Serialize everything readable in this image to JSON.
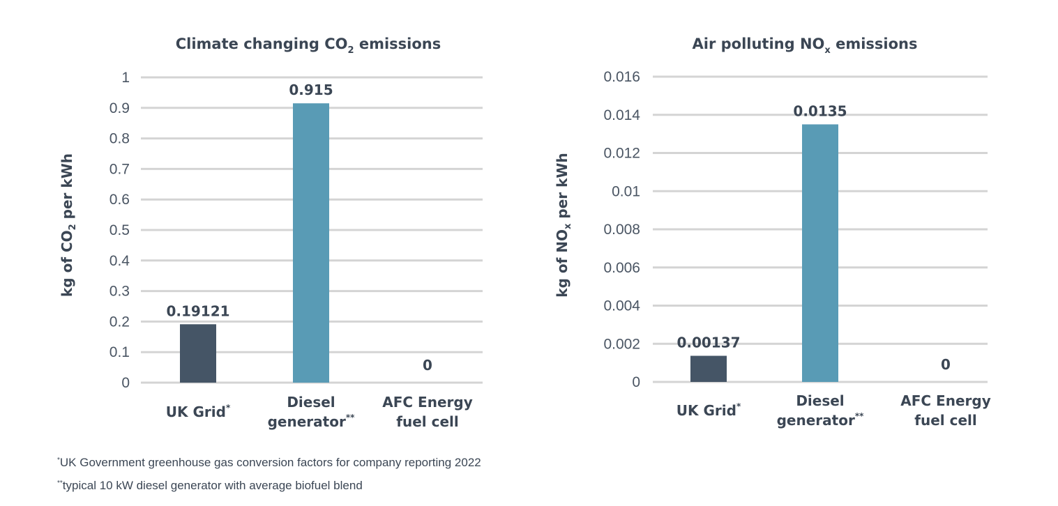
{
  "chart_data": [
    {
      "type": "bar",
      "title": {
        "pre": "Climate changing CO",
        "sub": "2",
        "post": " emissions"
      },
      "ylabel": {
        "pre": "kg of CO",
        "sub": "2",
        "post": " per kWh"
      },
      "categories": [
        {
          "lines": [
            "UK Grid"
          ],
          "mark": "*"
        },
        {
          "lines": [
            "Diesel",
            "generator"
          ],
          "mark": "**"
        },
        {
          "lines": [
            "AFC Energy",
            "fuel cell"
          ],
          "mark": ""
        }
      ],
      "values": [
        0.19121,
        0.915,
        0
      ],
      "value_labels": [
        "0.19121",
        "0.915",
        "0"
      ],
      "colors": [
        "#455566",
        "#599bb5",
        "#599bb5"
      ],
      "ylim": [
        0,
        1
      ],
      "yticks": [
        "0",
        "0.1",
        "0.2",
        "0.3",
        "0.4",
        "0.5",
        "0.6",
        "0.7",
        "0.8",
        "0.9",
        "1"
      ],
      "grid": true
    },
    {
      "type": "bar",
      "title": {
        "pre": "Air polluting NO",
        "sub": "x",
        "post": " emissions"
      },
      "ylabel": {
        "pre": "kg of NO",
        "sub": "x",
        "post": " per kWh"
      },
      "categories": [
        {
          "lines": [
            "UK Grid"
          ],
          "mark": "*"
        },
        {
          "lines": [
            "Diesel",
            "generator"
          ],
          "mark": "**"
        },
        {
          "lines": [
            "AFC Energy",
            "fuel cell"
          ],
          "mark": ""
        }
      ],
      "values": [
        0.00137,
        0.0135,
        0
      ],
      "value_labels": [
        "0.00137",
        "0.0135",
        "0"
      ],
      "colors": [
        "#455566",
        "#599bb5",
        "#599bb5"
      ],
      "ylim": [
        0,
        0.016
      ],
      "yticks": [
        "0",
        "0.002",
        "0.004",
        "0.006",
        "0.008",
        "0.01",
        "0.012",
        "0.014",
        "0.016"
      ],
      "grid": true
    }
  ],
  "footnotes": [
    {
      "mark": "*",
      "text": "UK Government greenhouse gas conversion factors for company reporting 2022"
    },
    {
      "mark": "**",
      "text": "typical 10 kW diesel generator with average biofuel blend"
    }
  ]
}
